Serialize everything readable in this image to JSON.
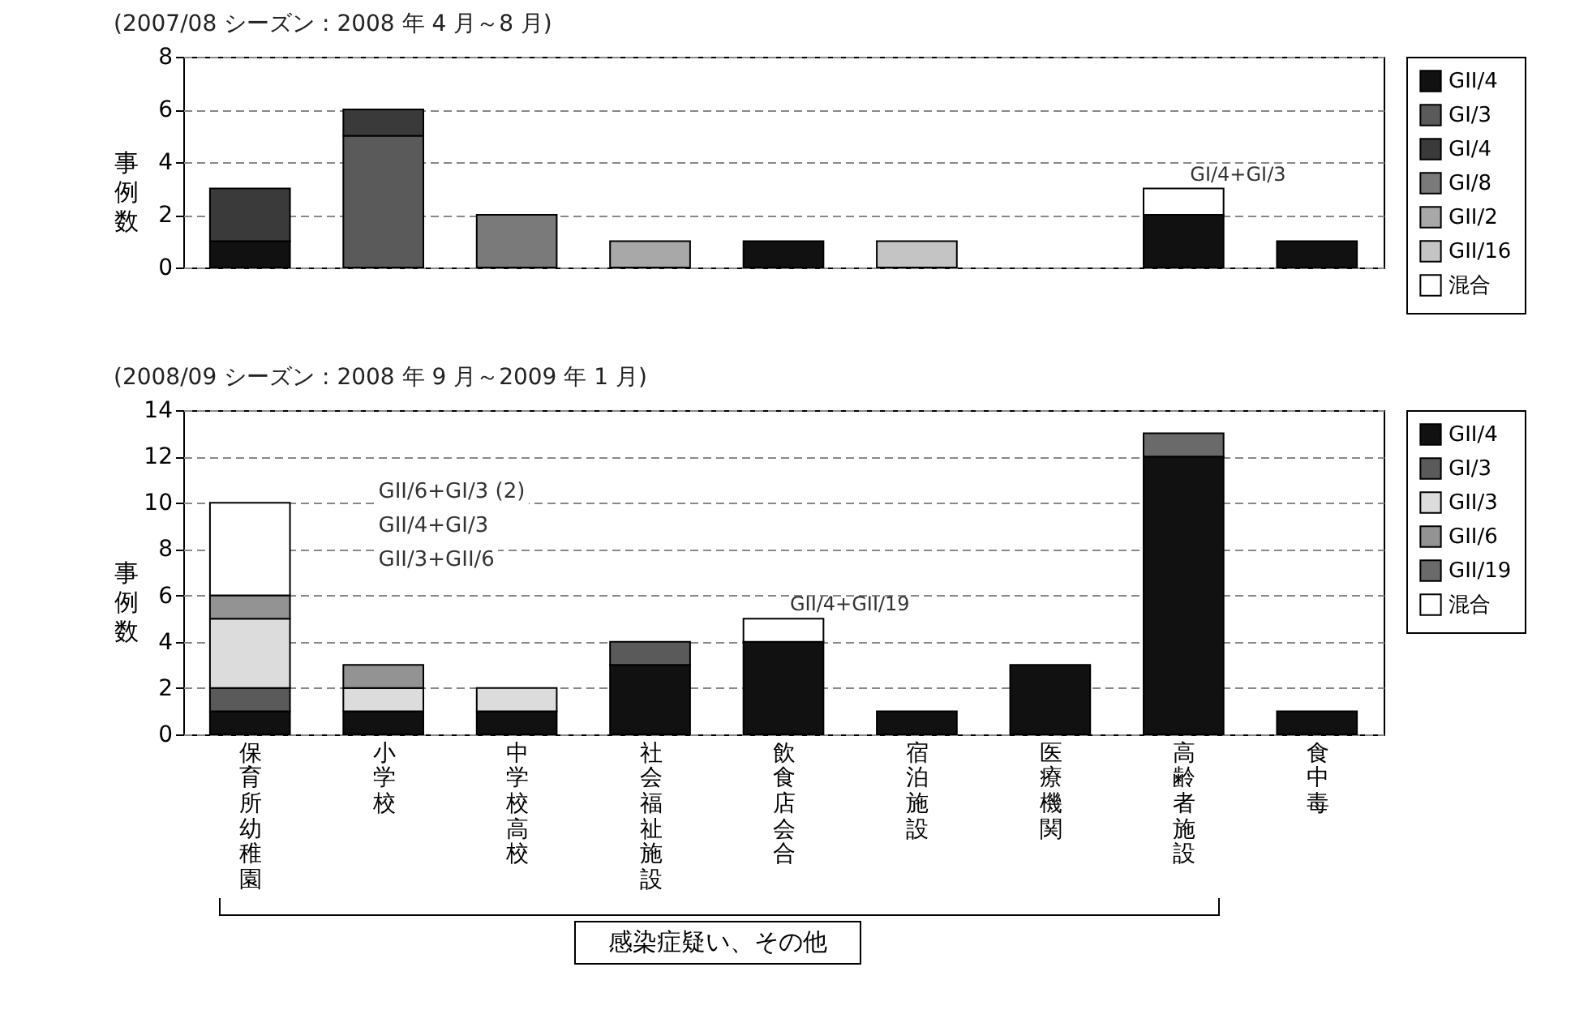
{
  "chart_data": [
    {
      "type": "bar",
      "stacked": true,
      "title": "(2007/08 シーズン : 2008 年 4 月～8 月)",
      "ylabel": "事例数",
      "categories": [
        "保育所幼稚園",
        "小学校",
        "中学校高校",
        "社会福祉施設",
        "飲食店会合",
        "宿泊施設",
        "医療機関",
        "高齢者施設",
        "食中毒"
      ],
      "series": [
        {
          "name": "GII/4",
          "color": "#111111",
          "values": [
            1,
            null,
            null,
            null,
            1,
            null,
            null,
            2,
            1
          ]
        },
        {
          "name": "GI/3",
          "color": "#5a5a5a",
          "values": [
            null,
            5,
            null,
            null,
            null,
            null,
            null,
            null,
            null
          ]
        },
        {
          "name": "GI/4",
          "color": "#3a3a3a",
          "values": [
            2,
            1,
            null,
            null,
            null,
            null,
            null,
            null,
            null
          ]
        },
        {
          "name": "GI/8",
          "color": "#7a7a7a",
          "values": [
            null,
            null,
            2,
            null,
            null,
            null,
            null,
            null,
            null
          ]
        },
        {
          "name": "GII/2",
          "color": "#a8a8a8",
          "values": [
            null,
            null,
            null,
            1,
            null,
            null,
            null,
            null,
            null
          ]
        },
        {
          "name": "GII/16",
          "color": "#c4c4c4",
          "values": [
            null,
            null,
            null,
            null,
            null,
            1,
            null,
            null,
            null
          ]
        },
        {
          "name": "混合",
          "color": "#ffffff",
          "values": [
            null,
            null,
            null,
            null,
            null,
            null,
            null,
            1,
            null
          ]
        }
      ],
      "ylim": [
        0,
        8
      ],
      "yticks": [
        0,
        2,
        4,
        6,
        8
      ],
      "grid": "y",
      "legend": "right",
      "tick_labels": "y",
      "annotations": [
        {
          "text": "GI/4+GI/3",
          "x": "高齢者施設",
          "y": 3
        }
      ]
    },
    {
      "type": "bar",
      "stacked": true,
      "title": "(2008/09 シーズン : 2008 年 9 月～2009 年 1 月)",
      "ylabel": "事例数",
      "categories": [
        "保育所幼稚園",
        "小学校",
        "中学校高校",
        "社会福祉施設",
        "飲食店会合",
        "宿泊施設",
        "医療機関",
        "高齢者施設",
        "食中毒"
      ],
      "series": [
        {
          "name": "GII/4",
          "color": "#111111",
          "values": [
            1,
            1,
            1,
            3,
            4,
            1,
            3,
            12,
            1
          ]
        },
        {
          "name": "GI/3",
          "color": "#5a5a5a",
          "values": [
            1,
            null,
            null,
            1,
            null,
            null,
            null,
            null,
            null
          ]
        },
        {
          "name": "GII/3",
          "color": "#dcdcdc",
          "values": [
            3,
            1,
            1,
            null,
            null,
            null,
            null,
            null,
            null
          ]
        },
        {
          "name": "GII/6",
          "color": "#939393",
          "values": [
            1,
            1,
            null,
            null,
            null,
            null,
            null,
            null,
            null
          ]
        },
        {
          "name": "GII/19",
          "color": "#6a6a6a",
          "values": [
            null,
            null,
            null,
            null,
            null,
            null,
            null,
            1,
            null
          ]
        },
        {
          "name": "混合",
          "color": "#ffffff",
          "values": [
            4,
            null,
            null,
            null,
            1,
            null,
            null,
            null,
            null
          ]
        }
      ],
      "ylim": [
        0,
        14
      ],
      "yticks": [
        0,
        2,
        4,
        6,
        8,
        10,
        12,
        14
      ],
      "grid": "y",
      "legend": "right",
      "annotations": [
        "GII/6+GI/3 (2)",
        "GII/4+GI/3",
        "GII/3+GII/6",
        {
          "text": "GII/4+GII/19",
          "x": "飲食店会合",
          "y": 5
        },
        "感染症疑い、その他"
      ]
    }
  ]
}
